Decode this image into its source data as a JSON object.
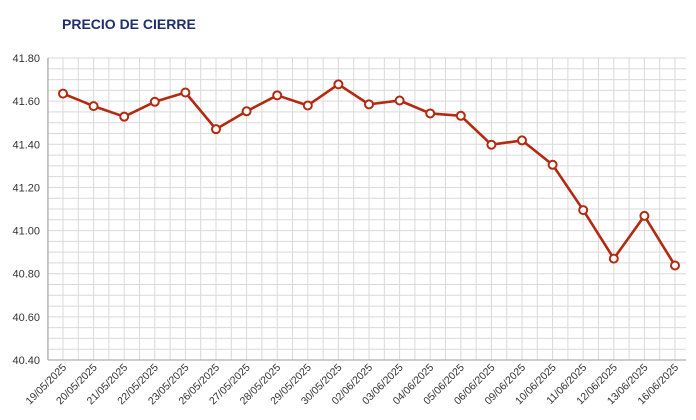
{
  "chart_data": {
    "type": "line",
    "title": "PRECIO DE CIERRE",
    "xlabel": "",
    "ylabel": "",
    "ylim": [
      40.4,
      41.8
    ],
    "y_ticks": [
      "40.40",
      "40.60",
      "40.80",
      "41.00",
      "41.20",
      "41.40",
      "41.60",
      "41.80"
    ],
    "y_tick_values": [
      40.4,
      40.6,
      40.8,
      41.0,
      41.2,
      41.4,
      41.6,
      41.8
    ],
    "grid": true,
    "categories": [
      "19/05/2025",
      "20/05/2025",
      "21/05/2025",
      "22/05/2025",
      "23/05/2025",
      "26/05/2025",
      "27/05/2025",
      "28/05/2025",
      "29/05/2025",
      "30/05/2025",
      "02/06/2025",
      "03/06/2025",
      "04/06/2025",
      "05/06/2025",
      "06/06/2025",
      "09/06/2025",
      "10/06/2025",
      "11/06/2025",
      "12/06/2025",
      "13/06/2025",
      "16/06/2025"
    ],
    "series": [
      {
        "values": [
          41.635,
          41.577,
          41.528,
          41.597,
          41.64,
          41.47,
          41.553,
          41.627,
          41.58,
          41.678,
          41.585,
          41.603,
          41.543,
          41.532,
          41.398,
          41.418,
          41.305,
          41.095,
          40.87,
          41.068,
          40.838
        ]
      }
    ],
    "colors": {
      "line": "#b22a12",
      "marker_fill": "#ffffff",
      "grid": "#d9d9d9",
      "title": "#1f2f6b"
    }
  }
}
